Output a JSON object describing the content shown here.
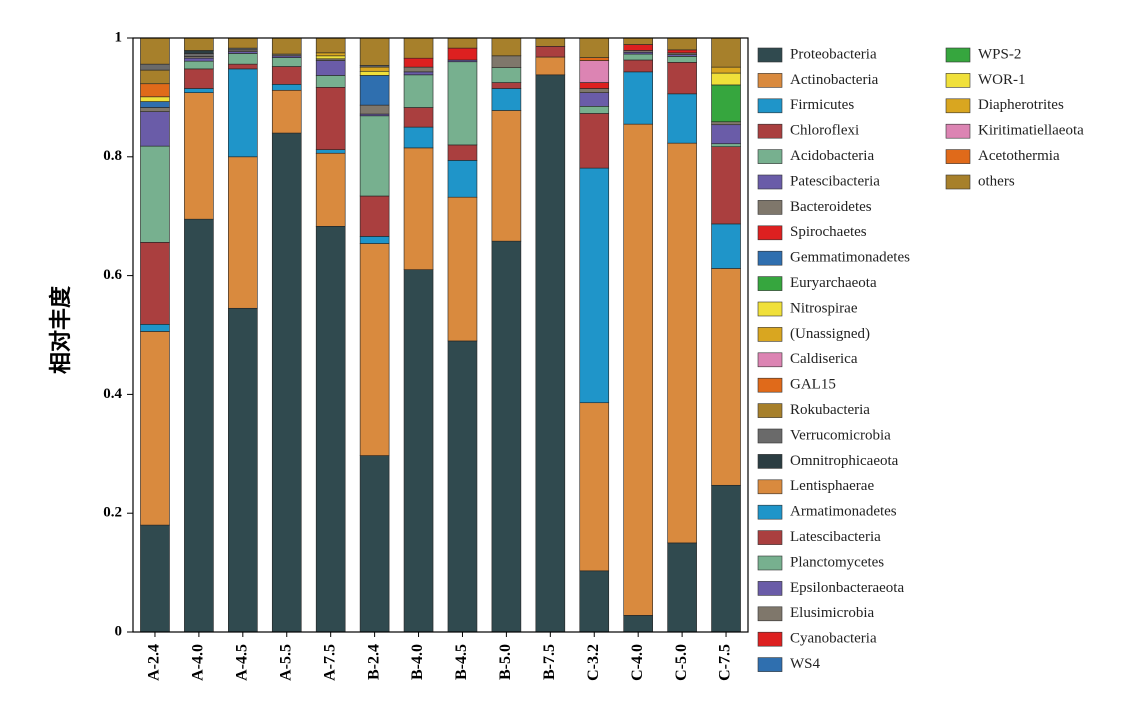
{
  "chart_data": {
    "type": "bar",
    "stacked": true,
    "title": "",
    "xlabel": "",
    "ylabel": "相对丰度",
    "ylim": [
      0,
      1
    ],
    "yticks": [
      "0",
      "0.2",
      "0.4",
      "0.6",
      "0.8",
      "1"
    ],
    "categories": [
      "A-2.4",
      "A-4.0",
      "A-4.5",
      "A-5.5",
      "A-7.5",
      "B-2.4",
      "B-4.0",
      "B-4.5",
      "B-5.0",
      "B-7.5",
      "C-3.2",
      "C-4.0",
      "C-5.0",
      "C-7.5"
    ],
    "legend_position": "right",
    "series": [
      {
        "name": "Proteobacteria",
        "color": "#304a4f",
        "values": [
          0.18,
          0.695,
          0.545,
          0.84,
          0.683,
          0.297,
          0.61,
          0.49,
          0.658,
          0.938,
          0.103,
          0.028,
          0.15,
          0.247
        ]
      },
      {
        "name": "Actinobacteria",
        "color": "#d98a3e",
        "values": [
          0.326,
          0.213,
          0.255,
          0.072,
          0.123,
          0.357,
          0.205,
          0.242,
          0.22,
          0.03,
          0.283,
          0.827,
          0.673,
          0.365
        ]
      },
      {
        "name": "Firmicutes",
        "color": "#1f95c9",
        "values": [
          0.012,
          0.007,
          0.148,
          0.01,
          0.006,
          0.012,
          0.035,
          0.062,
          0.037,
          0,
          0.395,
          0.088,
          0.083,
          0.075
        ]
      },
      {
        "name": "Chloroflexi",
        "color": "#aa3f3f",
        "values": [
          0.138,
          0.033,
          0.008,
          0.03,
          0.105,
          0.068,
          0.033,
          0.026,
          0.01,
          0.018,
          0.092,
          0.02,
          0.053,
          0.13
        ]
      },
      {
        "name": "Acidobacteria",
        "color": "#77b08f",
        "values": [
          0.162,
          0.013,
          0.018,
          0.015,
          0.02,
          0.135,
          0.055,
          0.14,
          0.025,
          0,
          0.012,
          0.01,
          0.01,
          0.005
        ]
      },
      {
        "name": "Patescibacteria",
        "color": "#6a5ca8",
        "values": [
          0.058,
          0.005,
          0.003,
          0.003,
          0.025,
          0.003,
          0.005,
          0.003,
          0,
          0,
          0.023,
          0.003,
          0.003,
          0.032
        ]
      },
      {
        "name": "Bacteroidetes",
        "color": "#7f776b",
        "values": [
          0.007,
          0.003,
          0.003,
          0.003,
          0.003,
          0.015,
          0.008,
          0,
          0.02,
          0,
          0.007,
          0.003,
          0.003,
          0.005
        ]
      },
      {
        "name": "Spirochaetes",
        "color": "#dd2020",
        "values": [
          0,
          0,
          0,
          0,
          0,
          0,
          0.015,
          0.02,
          0,
          0,
          0.01,
          0.01,
          0.005,
          0
        ]
      },
      {
        "name": "Gemmatimonadetes",
        "color": "#2f6faf",
        "values": [
          0.01,
          0,
          0,
          0,
          0,
          0.05,
          0,
          0,
          0,
          0,
          0,
          0,
          0,
          0
        ]
      },
      {
        "name": "Euryarchaeota",
        "color": "#36a63e",
        "values": [
          0,
          0,
          0,
          0,
          0,
          0,
          0,
          0,
          0,
          0,
          0,
          0,
          0,
          0.062
        ]
      },
      {
        "name": "Nitrospirae",
        "color": "#f0e03a",
        "values": [
          0.008,
          0,
          0,
          0,
          0.005,
          0.007,
          0,
          0,
          0,
          0,
          0,
          0,
          0,
          0.02
        ]
      },
      {
        "name": "(Unassigned)",
        "color": "#d9a620",
        "values": [
          0,
          0,
          0,
          0,
          0.005,
          0.007,
          0,
          0,
          0,
          0,
          0,
          0,
          0,
          0.01
        ]
      },
      {
        "name": "Caldiserica",
        "color": "#dc84b3",
        "values": [
          0,
          0,
          0,
          0,
          0,
          0,
          0,
          0,
          0,
          0,
          0.037,
          0,
          0,
          0
        ]
      },
      {
        "name": "GAL15",
        "color": "#e06a1a",
        "values": [
          0.022,
          0,
          0,
          0,
          0,
          0,
          0,
          0,
          0,
          0,
          0.005,
          0,
          0,
          0
        ]
      },
      {
        "name": "Rokubacteria",
        "color": "#a7802b",
        "values": [
          0.023,
          0,
          0,
          0,
          0,
          0,
          0,
          0,
          0,
          0,
          0,
          0,
          0,
          0
        ]
      },
      {
        "name": "Verrucomicrobia",
        "color": "#6a6a6a",
        "values": [
          0.01,
          0.005,
          0.003,
          0,
          0,
          0.003,
          0,
          0,
          0,
          0,
          0,
          0,
          0,
          0
        ]
      },
      {
        "name": "Omnitrophicaeota",
        "color": "#2b3d42",
        "values": [
          0,
          0.005,
          0,
          0,
          0,
          0,
          0,
          0,
          0,
          0,
          0,
          0,
          0,
          0
        ]
      },
      {
        "name": "Lentisphaerae",
        "color": "#d98a3e",
        "values": [
          0,
          0,
          0,
          0,
          0,
          0,
          0,
          0,
          0,
          0,
          0,
          0,
          0,
          0
        ]
      },
      {
        "name": "Armatimonadetes",
        "color": "#1f95c9",
        "values": [
          0,
          0,
          0,
          0,
          0,
          0,
          0,
          0,
          0,
          0,
          0,
          0,
          0,
          0
        ]
      },
      {
        "name": "Latescibacteria",
        "color": "#aa3f3f",
        "values": [
          0,
          0,
          0,
          0,
          0,
          0,
          0,
          0,
          0,
          0,
          0,
          0,
          0,
          0
        ]
      },
      {
        "name": "Planctomycetes",
        "color": "#77b08f",
        "values": [
          0,
          0,
          0,
          0,
          0,
          0,
          0,
          0,
          0,
          0,
          0,
          0,
          0,
          0
        ]
      },
      {
        "name": "Epsilonbacteraeota",
        "color": "#6a5ca8",
        "values": [
          0,
          0,
          0,
          0,
          0,
          0,
          0,
          0,
          0,
          0,
          0,
          0,
          0,
          0
        ]
      },
      {
        "name": "Elusimicrobia",
        "color": "#7f776b",
        "values": [
          0,
          0,
          0,
          0,
          0,
          0,
          0,
          0,
          0,
          0,
          0,
          0,
          0,
          0
        ]
      },
      {
        "name": "Cyanobacteria",
        "color": "#dd2020",
        "values": [
          0,
          0,
          0,
          0,
          0,
          0,
          0,
          0,
          0,
          0,
          0,
          0,
          0,
          0
        ]
      },
      {
        "name": "WS4",
        "color": "#2f6faf",
        "values": [
          0,
          0,
          0,
          0,
          0,
          0,
          0,
          0,
          0,
          0,
          0,
          0,
          0,
          0
        ]
      },
      {
        "name": "WPS-2",
        "color": "#36a63e",
        "values": [
          0,
          0,
          0,
          0,
          0,
          0,
          0,
          0,
          0,
          0,
          0,
          0,
          0,
          0
        ]
      },
      {
        "name": "WOR-1",
        "color": "#f0e03a",
        "values": [
          0,
          0,
          0,
          0,
          0,
          0,
          0,
          0,
          0,
          0,
          0,
          0,
          0,
          0
        ]
      },
      {
        "name": "Diapherotrites",
        "color": "#d9a620",
        "values": [
          0,
          0,
          0,
          0,
          0,
          0,
          0,
          0,
          0,
          0,
          0,
          0,
          0,
          0
        ]
      },
      {
        "name": "Kiritimatiellaeota",
        "color": "#dc84b3",
        "values": [
          0,
          0,
          0,
          0,
          0,
          0,
          0,
          0,
          0,
          0,
          0,
          0,
          0,
          0
        ]
      },
      {
        "name": "Acetothermia",
        "color": "#e06a1a",
        "values": [
          0,
          0,
          0,
          0,
          0,
          0,
          0,
          0,
          0,
          0,
          0,
          0,
          0,
          0
        ]
      },
      {
        "name": "others",
        "color": "#a7802b",
        "values": [
          0.044,
          0.024,
          0.017,
          0.027,
          0.025,
          0.046,
          0.034,
          0.017,
          0.03,
          0.014,
          0.033,
          0.011,
          0.02,
          0.049
        ]
      }
    ]
  }
}
